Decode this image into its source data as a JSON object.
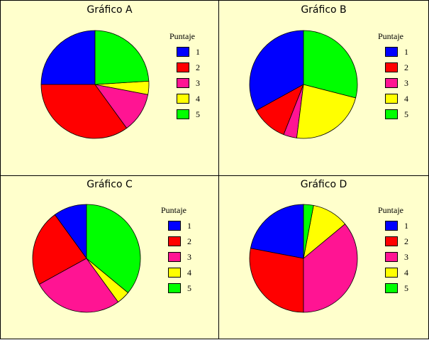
{
  "chart_data": [
    {
      "type": "pie",
      "title": "Gráfico A",
      "legend_title": "Puntaje",
      "categories": [
        "1",
        "2",
        "3",
        "4",
        "5"
      ],
      "values": [
        25,
        35,
        12,
        4,
        24
      ],
      "colors": [
        "#0000ff",
        "#ff0000",
        "#ff1493",
        "#ffff00",
        "#00ff00"
      ],
      "legend_placement": "right"
    },
    {
      "type": "pie",
      "title": "Gráfico B",
      "legend_title": "Puntaje",
      "categories": [
        "1",
        "2",
        "3",
        "4",
        "5"
      ],
      "values": [
        33,
        11,
        4,
        23,
        29
      ],
      "colors": [
        "#0000ff",
        "#ff0000",
        "#ff1493",
        "#ffff00",
        "#00ff00"
      ],
      "legend_placement": "right"
    },
    {
      "type": "pie",
      "title": "Gráfico C",
      "legend_title": "Puntaje",
      "categories": [
        "1",
        "2",
        "3",
        "4",
        "5"
      ],
      "values": [
        10,
        23,
        27,
        4,
        36
      ],
      "colors": [
        "#0000ff",
        "#ff0000",
        "#ff1493",
        "#ffff00",
        "#00ff00"
      ],
      "legend_placement": "right"
    },
    {
      "type": "pie",
      "title": "Gráfico D",
      "legend_title": "Puntaje",
      "categories": [
        "1",
        "2",
        "3",
        "4",
        "5"
      ],
      "values": [
        22,
        28,
        36,
        11,
        3
      ],
      "colors": [
        "#0000ff",
        "#ff0000",
        "#ff1493",
        "#ffff00",
        "#00ff00"
      ],
      "legend_placement": "right"
    }
  ]
}
